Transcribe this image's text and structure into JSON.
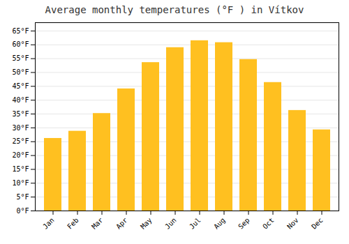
{
  "chart_data": {
    "type": "bar",
    "title": "Average monthly temperatures (°F ) in Vítkov",
    "categories": [
      "Jan",
      "Feb",
      "Mar",
      "Apr",
      "May",
      "Jun",
      "Jul",
      "Aug",
      "Sep",
      "Oct",
      "Nov",
      "Dec"
    ],
    "values": [
      26.2,
      28.8,
      35.2,
      44.1,
      53.6,
      59.0,
      61.5,
      60.8,
      54.7,
      46.4,
      36.3,
      29.3
    ],
    "color": "#FFC020",
    "ylim": [
      0,
      68
    ],
    "yticks": [
      {
        "value": 0,
        "label": "0°F"
      },
      {
        "value": 5,
        "label": "5°F"
      },
      {
        "value": 10,
        "label": "10°F"
      },
      {
        "value": 15,
        "label": "15°F"
      },
      {
        "value": 20,
        "label": "20°F"
      },
      {
        "value": 25,
        "label": "25°F"
      },
      {
        "value": 30,
        "label": "30°F"
      },
      {
        "value": 35,
        "label": "35°F"
      },
      {
        "value": 40,
        "label": "40°F"
      },
      {
        "value": 45,
        "label": "45°F"
      },
      {
        "value": 50,
        "label": "50°F"
      },
      {
        "value": 55,
        "label": "55°F"
      },
      {
        "value": 60,
        "label": "60°F"
      },
      {
        "value": 65,
        "label": "65°F"
      }
    ],
    "grid": true
  }
}
